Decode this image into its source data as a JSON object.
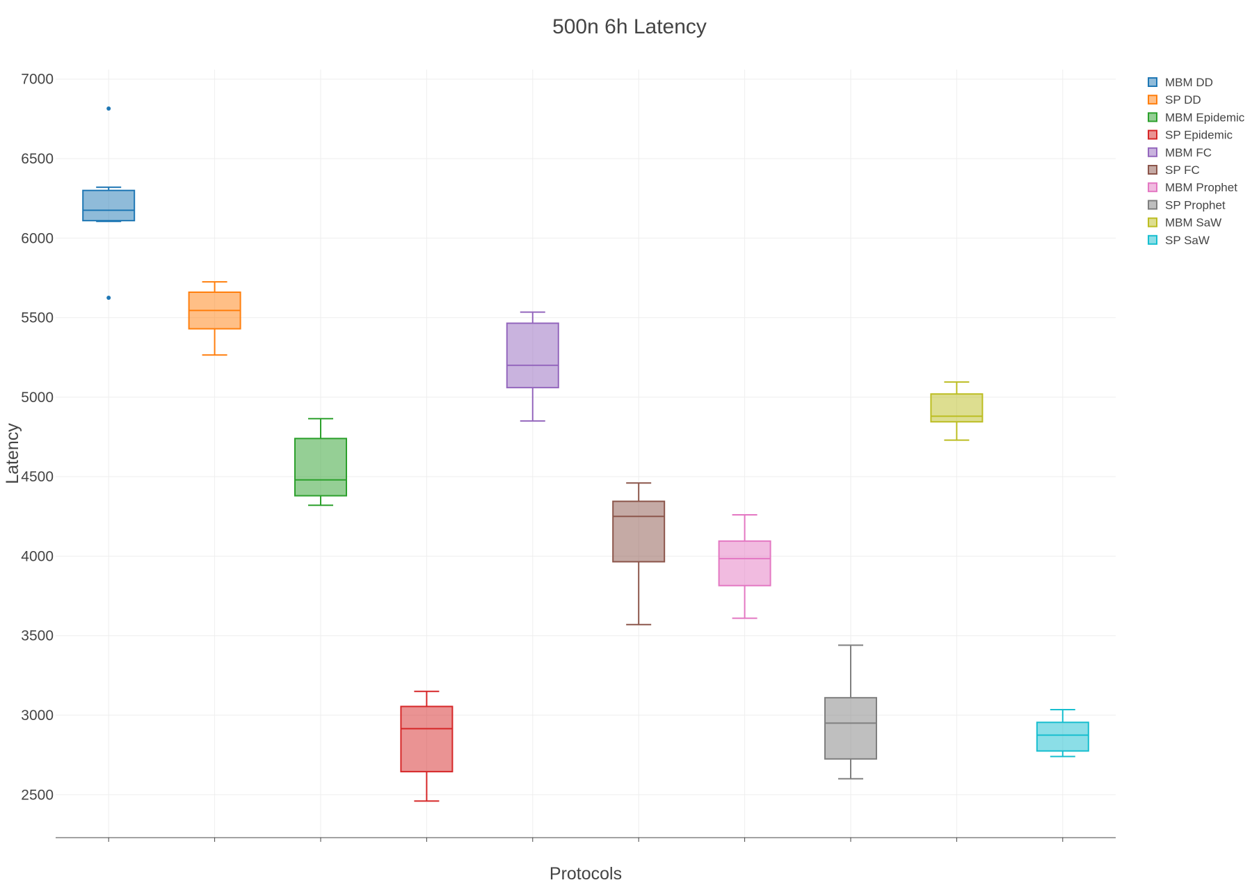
{
  "chart_data": {
    "type": "box",
    "title": "500n 6h Latency",
    "xlabel": "Protocols",
    "ylabel": "Latency",
    "ylim": [
      2230,
      7060
    ],
    "yticks": [
      2500,
      3000,
      3500,
      4000,
      4500,
      5000,
      5500,
      6000,
      6500,
      7000
    ],
    "grid": true,
    "legend_position": "top-right",
    "series": [
      {
        "name": "MBM DD",
        "color": "#1f77b4",
        "min": 6105,
        "q1": 6110,
        "median": 6175,
        "q3": 6300,
        "max": 6320,
        "outliers": [
          6815,
          5625
        ]
      },
      {
        "name": "SP DD",
        "color": "#ff7f0e",
        "min": 5265,
        "q1": 5430,
        "median": 5545,
        "q3": 5660,
        "max": 5725,
        "outliers": []
      },
      {
        "name": "MBM Epidemic",
        "color": "#2ca02c",
        "min": 4320,
        "q1": 4380,
        "median": 4480,
        "q3": 4740,
        "max": 4865,
        "outliers": []
      },
      {
        "name": "SP Epidemic",
        "color": "#d62728",
        "min": 2460,
        "q1": 2645,
        "median": 2915,
        "q3": 3055,
        "max": 3150,
        "outliers": []
      },
      {
        "name": "MBM FC",
        "color": "#9467bd",
        "min": 4850,
        "q1": 5060,
        "median": 5200,
        "q3": 5465,
        "max": 5535,
        "outliers": []
      },
      {
        "name": "SP FC",
        "color": "#8c564b",
        "min": 3570,
        "q1": 3965,
        "median": 4250,
        "q3": 4345,
        "max": 4460,
        "outliers": []
      },
      {
        "name": "MBM Prophet",
        "color": "#e377c2",
        "min": 3610,
        "q1": 3815,
        "median": 3985,
        "q3": 4095,
        "max": 4260,
        "outliers": []
      },
      {
        "name": "SP Prophet",
        "color": "#7f7f7f",
        "min": 2600,
        "q1": 2725,
        "median": 2950,
        "q3": 3110,
        "max": 3440,
        "outliers": []
      },
      {
        "name": "MBM SaW",
        "color": "#bcbd22",
        "min": 4730,
        "q1": 4845,
        "median": 4880,
        "q3": 5020,
        "max": 5095,
        "outliers": []
      },
      {
        "name": "SP SaW",
        "color": "#17becf",
        "min": 2740,
        "q1": 2775,
        "median": 2875,
        "q3": 2955,
        "max": 3035,
        "outliers": []
      }
    ]
  }
}
